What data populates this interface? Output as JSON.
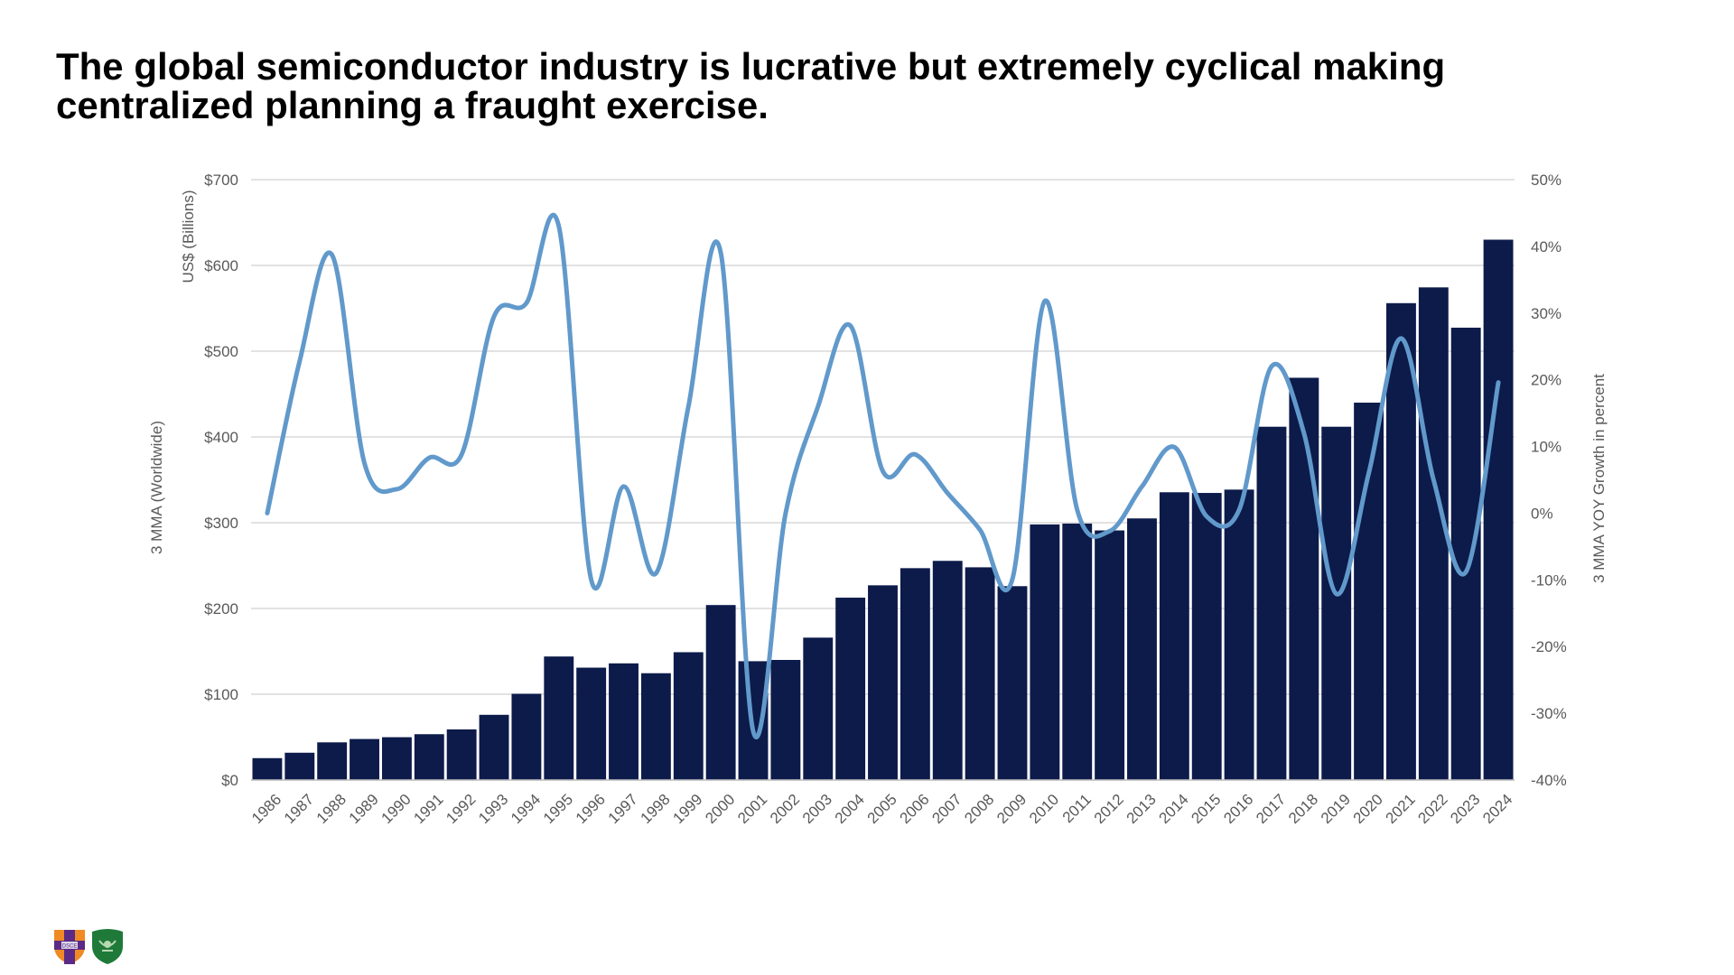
{
  "title": "The global semiconductor industry is lucrative but extremely cyclical making centralized planning a fraught exercise.",
  "colors": {
    "bar": "#0c1b4a",
    "line": "#6199cb",
    "grid": "#d9d9d9",
    "axis_text": "#595959"
  },
  "logos": [
    {
      "name": "university-shield-logo",
      "text": "DSCE"
    },
    {
      "name": "green-crest-logo",
      "text": ""
    }
  ],
  "chart_data": {
    "type": "bar",
    "combo": "bar+line (dual axis)",
    "title": "",
    "categories": [
      "1986",
      "1987",
      "1988",
      "1989",
      "1990",
      "1991",
      "1992",
      "1993",
      "1994",
      "1995",
      "1996",
      "1997",
      "1998",
      "1999",
      "2000",
      "2001",
      "2002",
      "2003",
      "2004",
      "2005",
      "2006",
      "2007",
      "2008",
      "2009",
      "2010",
      "2011",
      "2012",
      "2013",
      "2014",
      "2015",
      "2016",
      "2017",
      "2018",
      "2019",
      "2020",
      "2021",
      "2022",
      "2023",
      "2024"
    ],
    "series": [
      {
        "name": "3 MMA (Worldwide)",
        "type": "bar",
        "axis": "left",
        "values": [
          25.5,
          31.8,
          43.9,
          47.8,
          49.9,
          53.4,
          59,
          76,
          100.5,
          144,
          131,
          136,
          124.5,
          149,
          204,
          138.5,
          140,
          166,
          212.6,
          227,
          247,
          255.5,
          248,
          226,
          298,
          299,
          291,
          305,
          335.5,
          334.7,
          338.6,
          411.9,
          469,
          411.9,
          440,
          556,
          574.4,
          527.4,
          630
        ]
      },
      {
        "name": "3 MMA YOY Growth in percent",
        "type": "line",
        "smooth": true,
        "axis": "right",
        "values": [
          0,
          22.8,
          38.7,
          7.5,
          3.6,
          8.3,
          8.8,
          29.5,
          31.5,
          43,
          -10,
          4,
          -9,
          16,
          39,
          -32.7,
          0,
          16,
          28.1,
          6.3,
          8.8,
          3,
          -2.5,
          -9.9,
          31.8,
          0.5,
          -2.7,
          4,
          9.9,
          -0.5,
          0.5,
          22,
          12,
          -12.1,
          6,
          26.2,
          5,
          -8.8,
          19.6
        ]
      }
    ],
    "left_axis": {
      "title": "3 MMA (Worldwide)",
      "subtitle": "US$ (Billions)",
      "ylim": [
        0,
        700
      ],
      "ticks": [
        0,
        100,
        200,
        300,
        400,
        500,
        600,
        700
      ],
      "tick_labels": [
        "$0",
        "$100",
        "$200",
        "$300",
        "$400",
        "$500",
        "$600",
        "$700"
      ]
    },
    "right_axis": {
      "title": "3 MMA YOY Growth in percent",
      "ylim": [
        -40,
        50
      ],
      "ticks": [
        -40,
        -30,
        -20,
        -10,
        0,
        10,
        20,
        30,
        40,
        50
      ],
      "tick_labels": [
        "-40%",
        "-30%",
        "-20%",
        "-10%",
        "0%",
        "10%",
        "20%",
        "30%",
        "40%",
        "50%"
      ]
    },
    "xlabel": "",
    "grid": true,
    "legend": "none",
    "x_tick_rotation": "-45 degrees"
  }
}
